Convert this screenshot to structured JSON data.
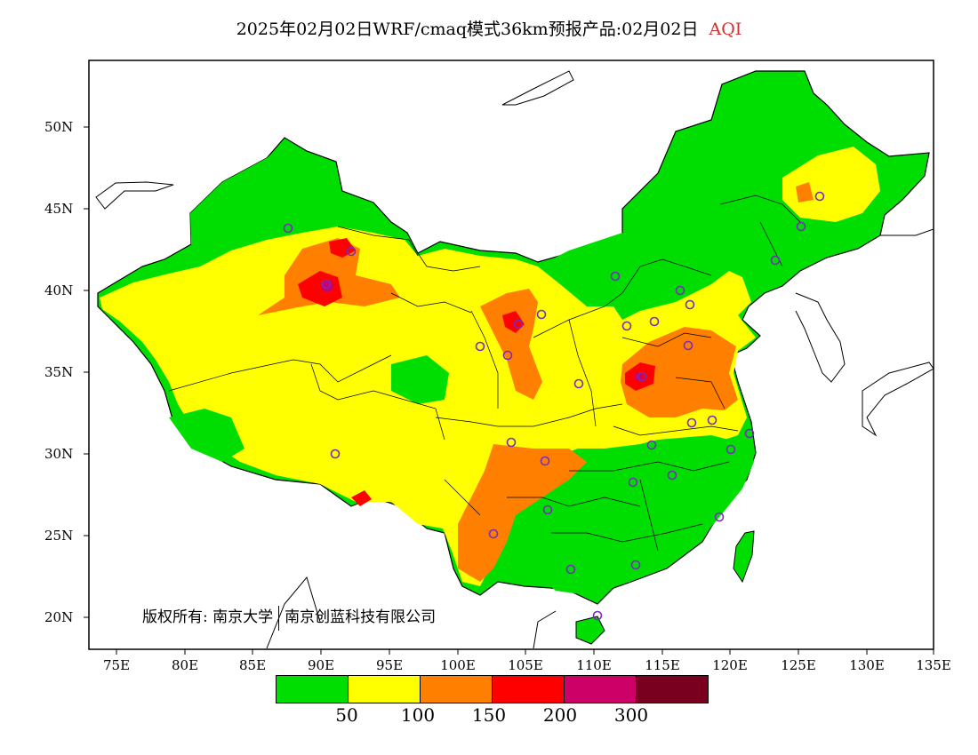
{
  "title": {
    "main": "2025年02月02日WRF/cmaq模式36km预报产品:02月02日",
    "pollutant": "AQI"
  },
  "copyright": {
    "prefix": "版权所有:",
    "org1": "南京大学",
    "org2": "南京创蓝科技有限公司"
  },
  "axes": {
    "lat_labels": [
      "50N",
      "45N",
      "40N",
      "35N",
      "30N",
      "25N",
      "20N"
    ],
    "lon_labels": [
      "75E",
      "80E",
      "85E",
      "90E",
      "95E",
      "100E",
      "105E",
      "110E",
      "115E",
      "120E",
      "125E",
      "130E",
      "135E"
    ]
  },
  "legend": {
    "colors": [
      "#00dd00",
      "#ffff00",
      "#ff8000",
      "#ff0000",
      "#cc0066",
      "#7a0020"
    ],
    "ticks": [
      "50",
      "100",
      "150",
      "200",
      "300"
    ]
  }
}
